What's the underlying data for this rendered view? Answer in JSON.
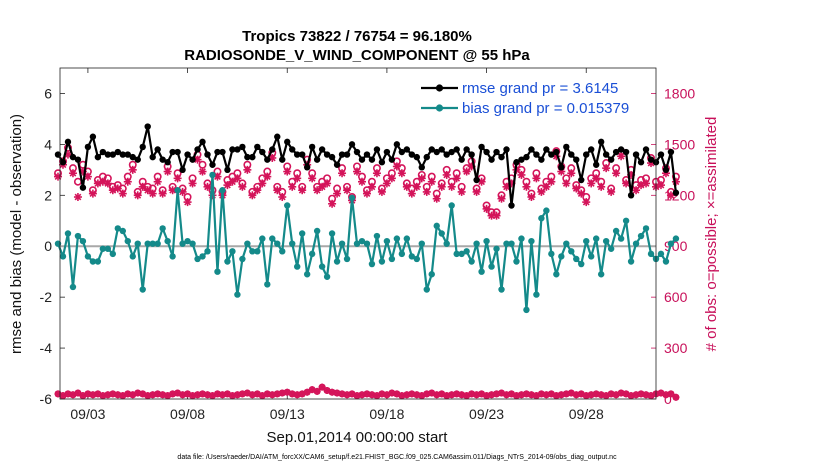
{
  "chart_data": {
    "type": "line",
    "title_line1": "Tropics 73822 / 76754 = 96.180%",
    "title_line2": "RADIOSONDE_V_WIND_COMPONENT @ 55 hPa",
    "xlabel": "Sep.01,2014 00:00:00 start",
    "ylabel_left": "rmse and bias (model - observation)",
    "ylabel_right": "# of obs: o=possible; ×=assimilated",
    "footnote": "data file: /Users/raeder/DAI/ATM_forcXX/CAM6_setup/f.e21.FHIST_BGC.f09_025.CAM6assim.011/Diags_NTrS_2014-09/obs_diag_output.nc",
    "x_ticks": [
      {
        "day": 3,
        "label": "09/03"
      },
      {
        "day": 8,
        "label": "09/08"
      },
      {
        "day": 13,
        "label": "09/13"
      },
      {
        "day": 18,
        "label": "09/18"
      },
      {
        "day": 23,
        "label": "09/23"
      },
      {
        "day": 28,
        "label": "09/28"
      }
    ],
    "xlim": [
      1.6,
      31.5
    ],
    "ylim_left": [
      -6,
      7
    ],
    "y_ticks_left": [
      "-6",
      "-4",
      "-2",
      "0",
      "2",
      "4",
      "6"
    ],
    "ylim_right": [
      0,
      1950
    ],
    "y_ticks_right": [
      "0",
      "300",
      "600",
      "900",
      "1200",
      "1500",
      "1800"
    ],
    "colors": {
      "rmse": "#000000",
      "bias": "#148a8a",
      "obs": "#d4145a",
      "zero_line": "#a8a8a8",
      "legend_text": "#1a4fd6"
    },
    "legend": [
      {
        "name": "rmse grand pr = 3.6145",
        "series": "rmse"
      },
      {
        "name": "bias grand pr = 0.015379",
        "series": "bias"
      }
    ],
    "x_start_day": 1.5,
    "x_step_days": 0.25,
    "series": [
      {
        "name": "rmse",
        "values": [
          3.6,
          3.3,
          4.1,
          3.5,
          3.4,
          2.3,
          3.9,
          4.3,
          3.5,
          3.7,
          3.6,
          3.6,
          3.7,
          3.6,
          3.6,
          3.5,
          3.4,
          3.9,
          4.7,
          3.5,
          3.8,
          3.4,
          3.3,
          3.7,
          3.7,
          3.0,
          3.6,
          3.4,
          3.8,
          4.1,
          3.6,
          3.2,
          3.7,
          3.7,
          3.0,
          3.8,
          3.8,
          3.9,
          3.5,
          3.5,
          3.9,
          3.7,
          3.4,
          3.8,
          4.3,
          3.4,
          4.1,
          3.8,
          3.6,
          3.6,
          3.1,
          3.9,
          3.4,
          3.8,
          3.6,
          3.5,
          3.2,
          3.6,
          3.6,
          4.0,
          3.7,
          3.4,
          3.6,
          3.4,
          3.8,
          3.3,
          3.7,
          3.4,
          4.0,
          3.7,
          3.8,
          3.6,
          3.5,
          3.1,
          3.5,
          3.8,
          3.7,
          3.8,
          3.6,
          3.7,
          3.8,
          3.4,
          3.8,
          3.6,
          2.6,
          3.9,
          3.7,
          3.4,
          3.7,
          3.5,
          3.8,
          1.6,
          3.3,
          3.4,
          3.5,
          3.8,
          3.6,
          3.4,
          3.8,
          3.6,
          3.7,
          3.1,
          3.9,
          3.6,
          3.4,
          2.6,
          3.6,
          3.8,
          3.2,
          4.1,
          3.6,
          3.4,
          3.7,
          3.8,
          3.7,
          2.0,
          3.6,
          3.3,
          3.8,
          3.4,
          3.3,
          3.6,
          3.0,
          3.7,
          2.1
        ]
      },
      {
        "name": "bias",
        "values": [
          0.1,
          -0.4,
          0.5,
          -1.6,
          0.4,
          0.2,
          -0.4,
          -0.6,
          -0.6,
          -0.1,
          -0.1,
          -0.3,
          0.7,
          0.6,
          0.2,
          -0.4,
          0.1,
          -1.7,
          0.1,
          0.1,
          0.1,
          0.7,
          0.2,
          -0.4,
          2.2,
          0.1,
          0.2,
          0.1,
          -0.5,
          -0.4,
          -0.2,
          2.8,
          -1.0,
          2.2,
          -0.6,
          -0.2,
          -1.9,
          -0.5,
          0.1,
          -0.2,
          -0.2,
          0.3,
          -1.5,
          0.3,
          0.1,
          -0.2,
          1.6,
          0.1,
          -0.8,
          0.5,
          -1.1,
          -0.3,
          0.6,
          -0.8,
          -1.2,
          0.5,
          -0.6,
          0.1,
          -0.5,
          1.9,
          0.1,
          0.2,
          0.1,
          -0.7,
          0.4,
          -0.6,
          0.2,
          -0.5,
          0.3,
          -0.3,
          0.3,
          -0.4,
          -0.5,
          0.1,
          -1.7,
          -1.1,
          0.8,
          0.5,
          0.1,
          1.6,
          -0.3,
          -0.3,
          -0.2,
          -0.6,
          0.1,
          -1.0,
          0.2,
          -0.8,
          -0.1,
          -1.7,
          0.1,
          0.1,
          -0.6,
          0.3,
          -2.5,
          0.2,
          -1.9,
          1.1,
          1.4,
          -0.3,
          -1.1,
          -0.4,
          0.1,
          -0.2,
          -0.5,
          -0.7,
          0.2,
          -0.4,
          0.3,
          -1.1,
          0.2,
          -0.1,
          0.6,
          0.3,
          1.0,
          -0.6,
          0.1,
          0.4,
          0.7,
          -0.3,
          -0.5,
          -0.3,
          -0.6,
          0.1,
          0.3
        ]
      },
      {
        "name": "obs_possible",
        "values": [
          1330,
          1400,
          1480,
          1360,
          1280,
          1380,
          1340,
          1230,
          1290,
          1310,
          1300,
          1250,
          1260,
          1240,
          1310,
          1380,
          1220,
          1280,
          1250,
          1240,
          1310,
          1230,
          1370,
          1250,
          1330,
          1240,
          1190,
          1300,
          1440,
          1380,
          1270,
          1230,
          1340,
          1220,
          1290,
          1310,
          1330,
          1270,
          1380,
          1220,
          1250,
          1300,
          1340,
          1450,
          1250,
          1220,
          1370,
          1280,
          1330,
          1250,
          1410,
          1330,
          1250,
          1280,
          1300,
          1180,
          1240,
          1360,
          1250,
          1190,
          1370,
          1310,
          1230,
          1280,
          1360,
          1240,
          1300,
          1330,
          1400,
          1360,
          1270,
          1240,
          1280,
          1320,
          1250,
          1310,
          1210,
          1270,
          1350,
          1280,
          1330,
          1250,
          1360,
          1400,
          1240,
          1300,
          1140,
          1100,
          1100,
          1200,
          1280,
          1300,
          1380,
          1350,
          1280,
          1210,
          1330,
          1240,
          1280,
          1310,
          1460,
          1370,
          1300,
          1360,
          1260,
          1230,
          1190,
          1300,
          1330,
          1280,
          1390,
          1240,
          1360,
          1460,
          1290,
          1350,
          1260,
          1290,
          1300,
          1420,
          1280,
          1290,
          1360,
          1220,
          1310
        ]
      },
      {
        "name": "obs_assimilated",
        "values": [
          1310,
          1380,
          1440,
          1330,
          1190,
          1340,
          1310,
          1210,
          1270,
          1280,
          1270,
          1230,
          1240,
          1210,
          1280,
          1350,
          1200,
          1250,
          1230,
          1210,
          1280,
          1210,
          1340,
          1230,
          1300,
          1220,
          1160,
          1270,
          1410,
          1340,
          1250,
          1200,
          1310,
          1200,
          1260,
          1280,
          1300,
          1250,
          1350,
          1200,
          1230,
          1270,
          1310,
          1420,
          1230,
          1190,
          1340,
          1250,
          1300,
          1230,
          1380,
          1300,
          1230,
          1250,
          1270,
          1150,
          1210,
          1330,
          1230,
          1170,
          1340,
          1280,
          1210,
          1250,
          1330,
          1220,
          1270,
          1300,
          1370,
          1330,
          1250,
          1210,
          1250,
          1300,
          1220,
          1280,
          1180,
          1250,
          1320,
          1250,
          1300,
          1220,
          1340,
          1370,
          1220,
          1280,
          1120,
          1080,
          1080,
          1180,
          1250,
          1270,
          1350,
          1320,
          1250,
          1190,
          1300,
          1220,
          1250,
          1280,
          1430,
          1340,
          1270,
          1330,
          1240,
          1210,
          1160,
          1270,
          1300,
          1250,
          1360,
          1220,
          1330,
          1430,
          1270,
          1320,
          1230,
          1260,
          1270,
          1390,
          1250,
          1260,
          1330,
          1200,
          1280
        ]
      }
    ],
    "bottom_obs_values": [
      30,
      20,
      30,
      25,
      35,
      20,
      30,
      25,
      30,
      20,
      25,
      30,
      25,
      20,
      30,
      25,
      35,
      30,
      20,
      25,
      30,
      25,
      20,
      30,
      35,
      25,
      30,
      20,
      25,
      30,
      25,
      20,
      30,
      25,
      30,
      20,
      25,
      30,
      35,
      25,
      30,
      20,
      30,
      25,
      30,
      35,
      40,
      30,
      25,
      30,
      40,
      55,
      45,
      70,
      50,
      40,
      35,
      30,
      25,
      30,
      20,
      25,
      30,
      25,
      20,
      30,
      25,
      35,
      30,
      20,
      25,
      30,
      25,
      20,
      30,
      35,
      25,
      30,
      20,
      25,
      30,
      25,
      20,
      30,
      25,
      30,
      20,
      25,
      30,
      35,
      25,
      30,
      20,
      25,
      30,
      25,
      20,
      30,
      25,
      30,
      20,
      25,
      30,
      35,
      25,
      30,
      20,
      25,
      30,
      25,
      20,
      30,
      25,
      35,
      30,
      20,
      25,
      30,
      25,
      20,
      30,
      35,
      25,
      30,
      10
    ]
  }
}
